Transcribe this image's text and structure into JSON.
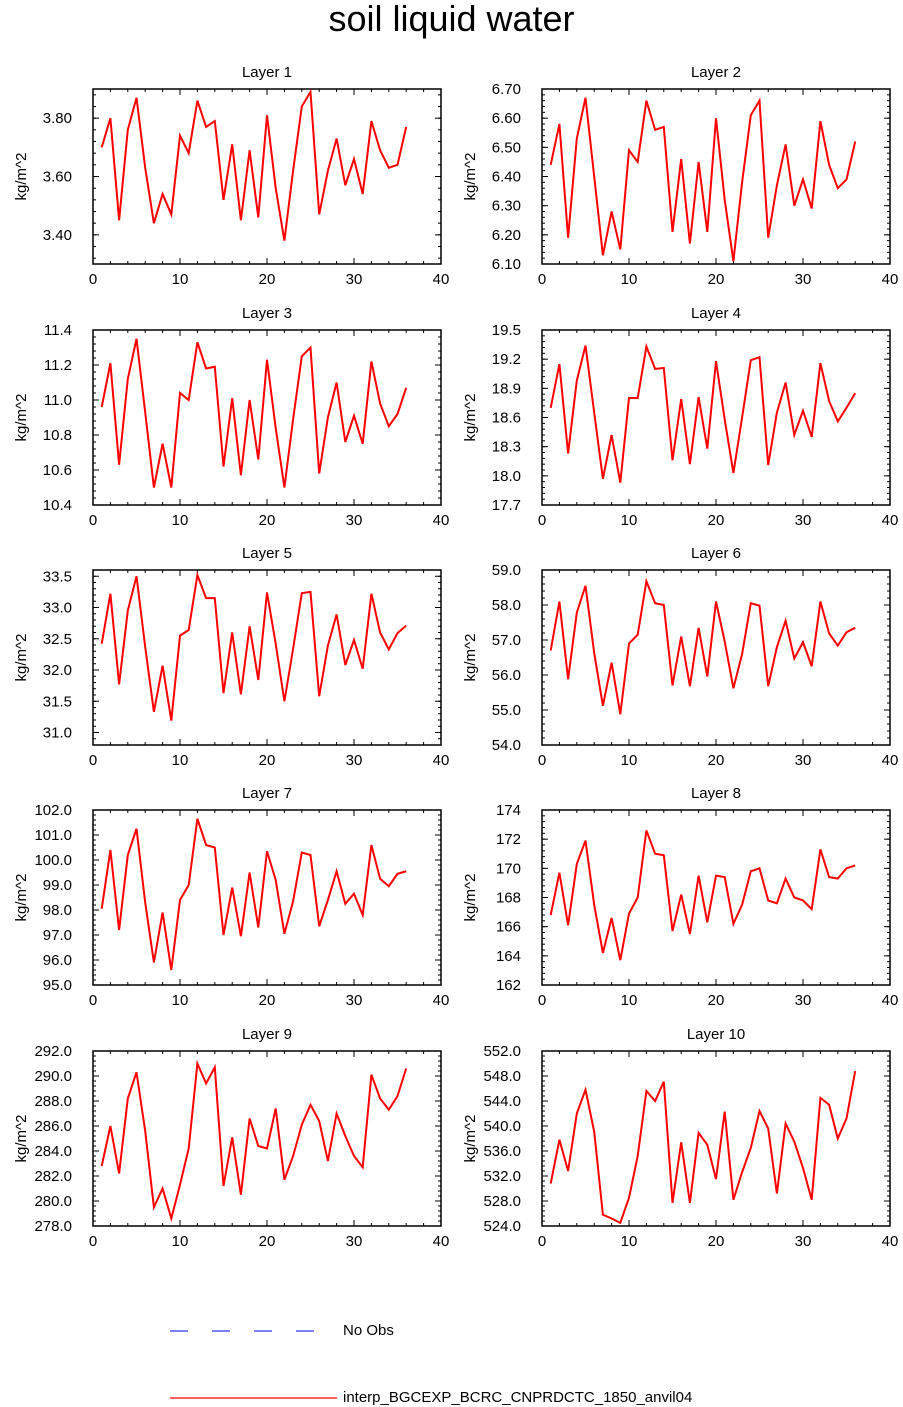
{
  "title": "soil liquid water",
  "colors": {
    "model": "#ff0000",
    "obs": "#3333ff",
    "axis": "#000000"
  },
  "legend": {
    "obs_label": "No Obs",
    "model_label": "interp_BGCEXP_BCRC_CNPRDCTC_1850_anvil04"
  },
  "chart_data": [
    {
      "type": "line",
      "title": "Layer 1",
      "xlabel": "",
      "ylabel": "kg/m^2",
      "xlim": [
        0,
        40
      ],
      "ylim": [
        3.3,
        3.9
      ],
      "xticks": [
        "0",
        "10",
        "20",
        "30",
        "40"
      ],
      "yticks": [
        "3.40",
        "3.60",
        "3.80"
      ],
      "ytick_values": [
        3.4,
        3.6,
        3.8
      ],
      "series": [
        {
          "values": [
            3.7,
            3.8,
            3.45,
            3.76,
            3.87,
            3.63,
            3.44,
            3.54,
            3.47,
            3.74,
            3.68,
            3.86,
            3.77,
            3.79,
            3.52,
            3.71,
            3.45,
            3.69,
            3.46,
            3.81,
            3.56,
            3.38,
            3.62,
            3.84,
            3.89,
            3.47,
            3.62,
            3.73,
            3.57,
            3.66,
            3.54,
            3.79,
            3.69,
            3.63,
            3.64,
            3.77
          ]
        }
      ]
    },
    {
      "type": "line",
      "title": "Layer 2",
      "xlabel": "",
      "ylabel": "kg/m^2",
      "xlim": [
        0,
        40
      ],
      "ylim": [
        6.1,
        6.7
      ],
      "xticks": [
        "0",
        "10",
        "20",
        "30",
        "40"
      ],
      "yticks": [
        "6.10",
        "6.20",
        "6.30",
        "6.40",
        "6.50",
        "6.60",
        "6.70"
      ],
      "ytick_values": [
        6.1,
        6.2,
        6.3,
        6.4,
        6.5,
        6.6,
        6.7
      ],
      "series": [
        {
          "values": [
            6.44,
            6.58,
            6.19,
            6.53,
            6.67,
            6.4,
            6.13,
            6.28,
            6.15,
            6.49,
            6.45,
            6.66,
            6.56,
            6.57,
            6.21,
            6.46,
            6.17,
            6.45,
            6.21,
            6.6,
            6.32,
            6.11,
            6.38,
            6.61,
            6.66,
            6.19,
            6.37,
            6.51,
            6.3,
            6.39,
            6.29,
            6.59,
            6.44,
            6.36,
            6.39,
            6.52
          ]
        }
      ]
    },
    {
      "type": "line",
      "title": "Layer 3",
      "xlabel": "",
      "ylabel": "kg/m^2",
      "xlim": [
        0,
        40
      ],
      "ylim": [
        10.4,
        11.4
      ],
      "xticks": [
        "0",
        "10",
        "20",
        "30",
        "40"
      ],
      "yticks": [
        "10.4",
        "10.6",
        "10.8",
        "11.0",
        "11.2",
        "11.4"
      ],
      "ytick_values": [
        10.4,
        10.6,
        10.8,
        11.0,
        11.2,
        11.4
      ],
      "series": [
        {
          "values": [
            10.96,
            11.21,
            10.63,
            11.12,
            11.35,
            10.93,
            10.5,
            10.75,
            10.5,
            11.04,
            11.0,
            11.33,
            11.18,
            11.19,
            10.62,
            11.01,
            10.57,
            11.0,
            10.66,
            11.23,
            10.84,
            10.5,
            10.89,
            11.25,
            11.3,
            10.58,
            10.9,
            11.1,
            10.76,
            10.91,
            10.75,
            11.22,
            10.98,
            10.85,
            10.92,
            11.07
          ]
        }
      ]
    },
    {
      "type": "line",
      "title": "Layer 4",
      "xlabel": "",
      "ylabel": "kg/m^2",
      "xlim": [
        0,
        40
      ],
      "ylim": [
        17.7,
        19.5
      ],
      "xticks": [
        "0",
        "10",
        "20",
        "30",
        "40"
      ],
      "yticks": [
        "17.7",
        "18.0",
        "18.3",
        "18.6",
        "18.9",
        "19.2",
        "19.5"
      ],
      "ytick_values": [
        17.7,
        18.0,
        18.3,
        18.6,
        18.9,
        19.2,
        19.5
      ],
      "series": [
        {
          "values": [
            18.7,
            19.15,
            18.23,
            18.98,
            19.34,
            18.65,
            17.97,
            18.42,
            17.93,
            18.8,
            18.8,
            19.33,
            19.1,
            19.11,
            18.16,
            18.79,
            18.12,
            18.81,
            18.28,
            19.18,
            18.58,
            18.03,
            18.6,
            19.19,
            19.22,
            18.11,
            18.65,
            18.96,
            18.42,
            18.67,
            18.4,
            19.16,
            18.77,
            18.56,
            18.7,
            18.85
          ]
        }
      ]
    },
    {
      "type": "line",
      "title": "Layer 5",
      "xlabel": "",
      "ylabel": "kg/m^2",
      "xlim": [
        0,
        40
      ],
      "ylim": [
        30.8,
        33.6
      ],
      "xticks": [
        "0",
        "10",
        "20",
        "30",
        "40"
      ],
      "yticks": [
        "31.0",
        "31.5",
        "32.0",
        "32.5",
        "33.0",
        "33.5"
      ],
      "ytick_values": [
        31.0,
        31.5,
        32.0,
        32.5,
        33.0,
        33.5
      ],
      "series": [
        {
          "values": [
            32.42,
            33.22,
            31.77,
            32.95,
            33.5,
            32.37,
            31.33,
            32.07,
            31.19,
            32.55,
            32.64,
            33.52,
            33.15,
            33.15,
            31.63,
            32.6,
            31.61,
            32.7,
            31.84,
            33.24,
            32.42,
            31.5,
            32.34,
            33.23,
            33.25,
            31.58,
            32.39,
            32.89,
            32.08,
            32.48,
            32.02,
            33.22,
            32.6,
            32.33,
            32.59,
            32.71
          ]
        }
      ]
    },
    {
      "type": "line",
      "title": "Layer 6",
      "xlabel": "",
      "ylabel": "kg/m^2",
      "xlim": [
        0,
        40
      ],
      "ylim": [
        54.0,
        59.0
      ],
      "xticks": [
        "0",
        "10",
        "20",
        "30",
        "40"
      ],
      "yticks": [
        "54.0",
        "55.0",
        "56.0",
        "57.0",
        "58.0",
        "59.0"
      ],
      "ytick_values": [
        54.0,
        55.0,
        56.0,
        57.0,
        58.0,
        59.0
      ],
      "series": [
        {
          "values": [
            56.7,
            58.1,
            55.88,
            57.78,
            58.55,
            56.63,
            55.12,
            56.35,
            54.88,
            56.9,
            57.15,
            58.68,
            58.05,
            58.0,
            55.7,
            57.1,
            55.68,
            57.35,
            55.96,
            58.1,
            56.96,
            55.62,
            56.6,
            58.05,
            57.98,
            55.68,
            56.8,
            57.55,
            56.47,
            56.94,
            56.25,
            58.1,
            57.19,
            56.84,
            57.22,
            57.35
          ]
        }
      ]
    },
    {
      "type": "line",
      "title": "Layer 7",
      "xlabel": "",
      "ylabel": "kg/m^2",
      "xlim": [
        0,
        40
      ],
      "ylim": [
        95.0,
        102.0
      ],
      "xticks": [
        "0",
        "10",
        "20",
        "30",
        "40"
      ],
      "yticks": [
        "95.0",
        "96.0",
        "97.0",
        "98.0",
        "99.0",
        "100.0",
        "101.0",
        "102.0"
      ],
      "ytick_values": [
        95,
        96,
        97,
        98,
        99,
        100,
        101,
        102
      ],
      "series": [
        {
          "values": [
            98.05,
            100.4,
            97.2,
            100.2,
            101.25,
            98.3,
            95.9,
            97.9,
            95.6,
            98.4,
            99.0,
            101.65,
            100.6,
            100.5,
            97.0,
            98.9,
            96.95,
            99.5,
            97.3,
            100.35,
            99.2,
            97.05,
            98.35,
            100.3,
            100.2,
            97.35,
            98.4,
            99.55,
            98.25,
            98.65,
            97.8,
            100.6,
            99.25,
            98.95,
            99.45,
            99.55
          ]
        }
      ]
    },
    {
      "type": "line",
      "title": "Layer 8",
      "xlabel": "",
      "ylabel": "kg/m^2",
      "xlim": [
        0,
        40
      ],
      "ylim": [
        162,
        174
      ],
      "xticks": [
        "0",
        "10",
        "20",
        "30",
        "40"
      ],
      "yticks": [
        "162",
        "164",
        "166",
        "168",
        "170",
        "172",
        "174"
      ],
      "ytick_values": [
        162,
        164,
        166,
        168,
        170,
        172,
        174
      ],
      "series": [
        {
          "values": [
            166.8,
            169.7,
            166.1,
            170.3,
            171.9,
            167.5,
            164.2,
            166.6,
            163.7,
            166.9,
            168.0,
            172.6,
            171.0,
            170.9,
            165.7,
            168.2,
            165.5,
            169.5,
            166.3,
            169.5,
            169.4,
            166.2,
            167.5,
            169.8,
            170.0,
            167.8,
            167.6,
            169.3,
            168.0,
            167.8,
            167.2,
            171.3,
            169.4,
            169.3,
            170.0,
            170.2
          ]
        }
      ]
    },
    {
      "type": "line",
      "title": "Layer 9",
      "xlabel": "",
      "ylabel": "kg/m^2",
      "xlim": [
        0,
        40
      ],
      "ylim": [
        278.0,
        292.0
      ],
      "xticks": [
        "0",
        "10",
        "20",
        "30",
        "40"
      ],
      "yticks": [
        "278.0",
        "280.0",
        "282.0",
        "284.0",
        "286.0",
        "288.0",
        "290.0",
        "292.0"
      ],
      "ytick_values": [
        278,
        280,
        282,
        284,
        286,
        288,
        290,
        292
      ],
      "series": [
        {
          "values": [
            282.8,
            286.0,
            282.2,
            288.2,
            290.3,
            285.6,
            279.5,
            281.0,
            278.6,
            281.3,
            284.2,
            291.0,
            289.4,
            290.7,
            281.2,
            285.1,
            280.5,
            286.6,
            284.4,
            284.2,
            287.4,
            281.7,
            283.6,
            286.1,
            287.7,
            286.4,
            283.2,
            287.0,
            285.2,
            283.6,
            282.7,
            290.1,
            288.2,
            287.3,
            288.4,
            290.6
          ]
        }
      ]
    },
    {
      "type": "line",
      "title": "Layer 10",
      "xlabel": "",
      "ylabel": "kg/m^2",
      "xlim": [
        0,
        40
      ],
      "ylim": [
        524.0,
        552.0
      ],
      "xticks": [
        "0",
        "10",
        "20",
        "30",
        "40"
      ],
      "yticks": [
        "524.0",
        "528.0",
        "532.0",
        "536.0",
        "540.0",
        "544.0",
        "548.0",
        "552.0"
      ],
      "ytick_values": [
        524,
        528,
        532,
        536,
        540,
        544,
        548,
        552
      ],
      "series": [
        {
          "values": [
            530.8,
            537.8,
            532.8,
            542.0,
            545.8,
            539.1,
            525.8,
            525.2,
            524.5,
            528.5,
            535.2,
            545.6,
            544.0,
            547.1,
            527.7,
            537.4,
            527.7,
            538.9,
            537.0,
            531.5,
            542.3,
            528.2,
            532.6,
            536.5,
            542.4,
            539.6,
            529.2,
            540.4,
            537.5,
            533.3,
            528.2,
            544.5,
            543.4,
            538.0,
            541.2,
            548.8
          ]
        }
      ]
    }
  ]
}
